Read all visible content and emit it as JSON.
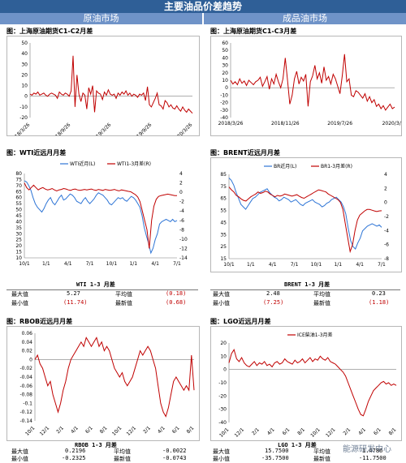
{
  "header": {
    "title": "主要油品价差趋势"
  },
  "sections": {
    "crude": "原油市场",
    "product": "成品油市场"
  },
  "panels": {
    "p1": {
      "title": "图：上海原油期货C1-C2月差"
    },
    "p2": {
      "title": "图：上海原油期货C1-C3月差"
    },
    "p3": {
      "title": "图：WTI近远月月差"
    },
    "p4": {
      "title": "图：BRENT近远月月差"
    },
    "p5": {
      "title": "图：RBOB近远月月差"
    },
    "p6": {
      "title": "图：LGO近远月月差"
    }
  },
  "stats": {
    "wti": {
      "heading": "WTI 1-3 月差",
      "max_label": "最大值",
      "max": "5.27",
      "avg_label": "平均值",
      "avg": "(0.18)",
      "min_label": "最小值",
      "min": "(11.74)",
      "latest_label": "最新值",
      "latest": "(0.68)"
    },
    "brent": {
      "heading": "BRENT 1-3 月差",
      "max_label": "最大值",
      "max": "2.48",
      "avg_label": "平均值",
      "avg": "0.23",
      "min_label": "最小值",
      "min": "(7.25)",
      "latest_label": "最新值",
      "latest": "(1.18)"
    },
    "rbob": {
      "heading": "RBOB 1-3 月差",
      "max_label": "最大值",
      "max": "0.2196",
      "avg_label": "平均值",
      "avg": "-0.0022",
      "min_label": "最小值",
      "min": "-0.2325",
      "latest_label": "最新值",
      "latest": "-0.0743"
    },
    "lgo": {
      "heading": "LGO 1-3 月差",
      "max_label": "最大值",
      "max": "15.7500",
      "avg_label": "平均值",
      "avg": "1.4786",
      "min_label": "最小值",
      "min": "-35.7500",
      "latest_label": "最新值",
      "latest": "-11.7500"
    }
  },
  "watermark": "能源研发中心",
  "colors": {
    "series_red": "#c00000",
    "series_blue": "#2e75d6",
    "header": "#2f5f97",
    "section": "#6f93c8"
  },
  "chart_data": [
    {
      "type": "line",
      "id": "sc_c1c2",
      "title": "",
      "ylim": [
        -20,
        50
      ],
      "yticks": [
        -20,
        -10,
        0,
        10,
        20,
        30,
        40,
        50
      ],
      "xticks": [
        "2018/3/26",
        "2018/9/26",
        "2019/3/26",
        "2019/9/26",
        "2020/3/26"
      ],
      "series": [
        {
          "color": "#c00000",
          "values": [
            2,
            1,
            3,
            2,
            4,
            1,
            2,
            3,
            1,
            0,
            2,
            3,
            2,
            1,
            -2,
            4,
            2,
            1,
            3,
            2,
            0,
            5,
            38,
            -10,
            20,
            2,
            -5,
            3,
            1,
            -12,
            8,
            2,
            10,
            -15,
            5,
            3,
            2,
            -3,
            4,
            1,
            6,
            2,
            1,
            2,
            -2,
            3,
            1,
            4,
            2,
            5,
            1,
            3,
            0,
            2,
            1,
            -1,
            2,
            1,
            3,
            -4,
            9,
            -8,
            -10,
            -6,
            -2,
            3,
            -8,
            -9,
            -12,
            -4,
            -6,
            -10,
            -8,
            -11,
            -12,
            -9,
            -12,
            -14,
            -10,
            -13,
            -15,
            -12,
            -14,
            -16
          ]
        }
      ]
    },
    {
      "type": "line",
      "id": "sc_c1c3",
      "title": "",
      "ylim": [
        -40,
        60
      ],
      "yticks": [
        -40,
        -30,
        -20,
        -10,
        0,
        10,
        20,
        30,
        40,
        50,
        60
      ],
      "xticks": [
        "2018/3/26",
        "2018/11/26",
        "2019/7/26",
        "2020/3/26"
      ],
      "series": [
        {
          "color": "#c00000",
          "values": [
            10,
            5,
            8,
            4,
            12,
            6,
            9,
            3,
            10,
            7,
            4,
            8,
            10,
            14,
            2,
            8,
            15,
            -2,
            12,
            5,
            18,
            8,
            0,
            12,
            40,
            10,
            -22,
            -10,
            12,
            22,
            5,
            14,
            9,
            18,
            -25,
            8,
            16,
            30,
            12,
            20,
            6,
            28,
            10,
            15,
            5,
            18,
            12,
            2,
            -8,
            16,
            45,
            8,
            12,
            -10,
            -12,
            -4,
            -6,
            -10,
            -14,
            -8,
            -18,
            -12,
            -20,
            -16,
            -25,
            -22,
            -28,
            -24,
            -30,
            -26,
            -22,
            -28,
            -26
          ]
        }
      ]
    },
    {
      "type": "line",
      "id": "wti",
      "title": "",
      "ylim": [
        10,
        80
      ],
      "y2lim": [
        -14,
        4
      ],
      "yticks": [
        10,
        15,
        20,
        25,
        30,
        35,
        40,
        45,
        50,
        55,
        60,
        65,
        70,
        75,
        80
      ],
      "y2ticks": [
        -14,
        -12,
        -10,
        -8,
        -6,
        -4,
        -2,
        0,
        2,
        4
      ],
      "xticks": [
        "10/1",
        "1/1",
        "4/1",
        "7/1",
        "10/1",
        "1/1",
        "4/1",
        "7/1"
      ],
      "legend": [
        "WTI近月(L)",
        "WTI1-3月差(R)"
      ],
      "series": [
        {
          "name": "WTI近月(L)",
          "axis": "left",
          "color": "#2e75d6",
          "values": [
            74,
            73,
            70,
            66,
            60,
            55,
            52,
            50,
            48,
            51,
            55,
            58,
            60,
            56,
            54,
            57,
            60,
            62,
            58,
            59,
            61,
            63,
            62,
            60,
            57,
            56,
            55,
            58,
            60,
            57,
            55,
            57,
            59,
            62,
            64,
            63,
            62,
            60,
            58,
            55,
            54,
            56,
            58,
            60,
            59,
            60,
            58,
            57,
            59,
            61,
            60,
            58,
            55,
            52,
            45,
            35,
            28,
            22,
            14,
            18,
            25,
            30,
            38,
            40,
            41,
            42,
            41,
            40,
            42,
            40,
            41
          ]
        },
        {
          "name": "WTI1-3月差(R)",
          "axis": "right",
          "color": "#c00000",
          "values": [
            2,
            1,
            0.5,
            1,
            1.5,
            1,
            0.5,
            0.8,
            1,
            0.7,
            0.5,
            0.6,
            0.8,
            0.5,
            0.3,
            0.5,
            0.6,
            0.8,
            0.7,
            0.5,
            0.4,
            0.6,
            0.7,
            0.5,
            0.4,
            0.5,
            0.6,
            0.5,
            0.6,
            0.7,
            0.5,
            0.4,
            0.6,
            0.5,
            0.4,
            0.6,
            0.5,
            0.4,
            0.5,
            0.6,
            0.4,
            0.3,
            0.5,
            0.4,
            0.3,
            0.2,
            0.1,
            -0.2,
            -0.5,
            -1,
            -2,
            -4,
            -6,
            -8,
            -12,
            -6,
            -3,
            -1.5,
            -0.9,
            -0.7,
            -0.6,
            -0.5,
            -0.4,
            -0.5,
            -0.6,
            -0.7,
            -0.7
          ]
        }
      ]
    },
    {
      "type": "line",
      "id": "brent",
      "title": "",
      "ylim": [
        15,
        85
      ],
      "y2lim": [
        -8,
        4
      ],
      "yticks": [
        15,
        25,
        35,
        45,
        55,
        65,
        75,
        85
      ],
      "y2ticks": [
        -8,
        -6,
        -4,
        -2,
        0,
        2,
        4
      ],
      "xticks": [
        "10/1",
        "1/1",
        "4/1",
        "7/1",
        "10/1",
        "1/1",
        "4/1",
        "7/1"
      ],
      "legend": [
        "BR近月(L)",
        "BR1-3月差(R)"
      ],
      "series": [
        {
          "name": "BR近月(L)",
          "axis": "left",
          "color": "#2e75d6",
          "values": [
            82,
            80,
            76,
            70,
            65,
            60,
            58,
            56,
            59,
            62,
            65,
            66,
            68,
            70,
            71,
            72,
            73,
            70,
            68,
            66,
            65,
            63,
            64,
            66,
            65,
            64,
            62,
            63,
            64,
            62,
            60,
            59,
            61,
            62,
            63,
            64,
            62,
            61,
            60,
            58,
            59,
            61,
            62,
            64,
            65,
            66,
            64,
            62,
            58,
            52,
            40,
            30,
            25,
            23,
            28,
            32,
            38,
            40,
            42,
            43,
            44,
            43,
            42,
            43,
            41
          ]
        },
        {
          "name": "BR1-3月差(R)",
          "axis": "right",
          "color": "#c00000",
          "values": [
            2.2,
            1.8,
            1.5,
            1,
            0.8,
            0.5,
            0.3,
            0.2,
            0.5,
            0.8,
            1,
            1.2,
            1.5,
            1.3,
            1.4,
            1.6,
            1.5,
            1.2,
            1,
            0.8,
            1,
            0.9,
            1,
            1.2,
            1.1,
            1,
            0.9,
            1,
            1.1,
            0.9,
            0.7,
            0.6,
            0.8,
            1,
            1.2,
            1.4,
            1.6,
            1.8,
            1.7,
            1.6,
            1.5,
            1.2,
            1,
            0.8,
            0.6,
            0.4,
            0,
            -1,
            -3,
            -5,
            -7,
            -6,
            -4,
            -2.5,
            -1.8,
            -1.5,
            -1.2,
            -1,
            -1,
            -1.1,
            -1.2,
            -1.3,
            -1.2,
            -1.18
          ]
        }
      ]
    },
    {
      "type": "line",
      "id": "rbob",
      "title": "",
      "ylim": [
        -0.14,
        0.06
      ],
      "yticks": [
        -0.14,
        -0.12,
        -0.1,
        -0.08,
        -0.06,
        -0.04,
        -0.02,
        0,
        0.02,
        0.04,
        0.06
      ],
      "xticks": [
        "10/1",
        "12/1",
        "2/1",
        "4/1",
        "6/1",
        "8/1",
        "10/1",
        "12/1",
        "2/1",
        "4/1",
        "6/1",
        "8/1"
      ],
      "series": [
        {
          "color": "#c00000",
          "values": [
            0,
            0.01,
            -0.01,
            -0.02,
            -0.04,
            -0.06,
            -0.05,
            -0.08,
            -0.1,
            -0.12,
            -0.1,
            -0.07,
            -0.05,
            -0.02,
            0,
            0.01,
            0.02,
            0.03,
            0.04,
            0.03,
            0.05,
            0.04,
            0.03,
            0.04,
            0.05,
            0.03,
            0.04,
            0.02,
            0.03,
            0.02,
            0,
            -0.02,
            -0.03,
            -0.04,
            -0.03,
            -0.05,
            -0.06,
            -0.05,
            -0.04,
            -0.02,
            0,
            0.02,
            0.01,
            0.02,
            0.03,
            0.02,
            0,
            -0.02,
            -0.06,
            -0.1,
            -0.12,
            -0.13,
            -0.11,
            -0.08,
            -0.05,
            -0.04,
            -0.05,
            -0.06,
            -0.07,
            -0.06,
            -0.07,
            0.01,
            -0.07
          ]
        }
      ]
    },
    {
      "type": "line",
      "id": "lgo",
      "title": "",
      "ylim": [
        -40,
        20
      ],
      "yticks": [
        -40,
        -30,
        -20,
        -10,
        0,
        10,
        20
      ],
      "xticks": [
        "10/1",
        "12/1",
        "2/1",
        "4/1",
        "6/1",
        "8/1",
        "10/1",
        "12/1",
        "2/1",
        "4/1",
        "6/1",
        "8/1"
      ],
      "legend": [
        "ICE柴油1-3月差"
      ],
      "series": [
        {
          "name": "ICE柴油1-3月差",
          "color": "#c00000",
          "values": [
            5,
            12,
            15,
            8,
            6,
            9,
            5,
            3,
            2,
            4,
            6,
            3,
            5,
            4,
            6,
            3,
            4,
            2,
            5,
            6,
            4,
            5,
            8,
            6,
            5,
            4,
            7,
            5,
            6,
            8,
            5,
            7,
            9,
            6,
            8,
            7,
            10,
            8,
            7,
            9,
            6,
            5,
            4,
            2,
            0,
            -2,
            -5,
            -10,
            -15,
            -20,
            -25,
            -30,
            -34,
            -35,
            -30,
            -24,
            -20,
            -16,
            -14,
            -12,
            -10,
            -9,
            -11,
            -10,
            -12,
            -11,
            -12
          ]
        }
      ]
    }
  ]
}
